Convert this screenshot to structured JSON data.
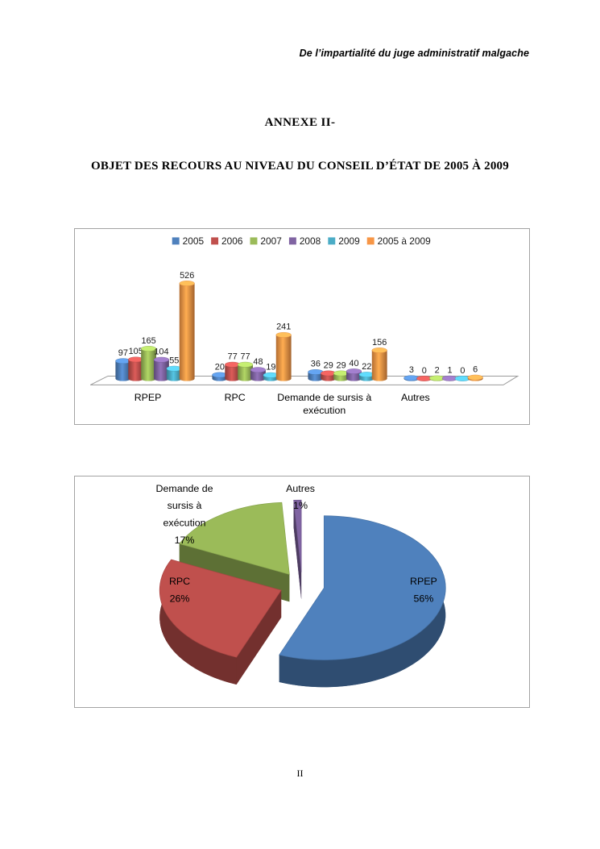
{
  "page": {
    "header": "De l’impartialité du juge administratif malgache",
    "title": "ANNEXE II-",
    "subtitle": "OBJET DES RECOURS AU NIVEAU DU CONSEIL D’ÉTAT DE 2005 À 2009",
    "footer": "II"
  },
  "chart_data": [
    {
      "type": "bar",
      "style": "3d-cylinder",
      "title": "",
      "categories": [
        "RPEP",
        "RPC",
        "Demande de sursis à exécution",
        "Autres"
      ],
      "categories_wrapped": [
        [
          "RPEP"
        ],
        [
          "RPC"
        ],
        [
          "Demande de sursis à",
          "exécution"
        ],
        [
          "Autres"
        ]
      ],
      "series": [
        {
          "name": "2005",
          "color": "#4F81BD",
          "values": [
            97,
            20,
            36,
            3
          ]
        },
        {
          "name": "2006",
          "color": "#C0504D",
          "values": [
            105,
            77,
            29,
            0
          ]
        },
        {
          "name": "2007",
          "color": "#9BBB59",
          "values": [
            165,
            77,
            29,
            2
          ]
        },
        {
          "name": "2008",
          "color": "#8064A2",
          "values": [
            104,
            48,
            40,
            1
          ]
        },
        {
          "name": "2009",
          "color": "#4BACC6",
          "values": [
            55,
            19,
            22,
            0
          ]
        },
        {
          "name": "2005 à 2009",
          "color": "#F79646",
          "values": [
            526,
            241,
            156,
            6
          ]
        }
      ],
      "legend_position": "top",
      "data_labels": true,
      "ylim": [
        0,
        526
      ],
      "grid": false
    },
    {
      "type": "pie",
      "style": "3d-exploded",
      "labels": [
        "RPEP",
        "RPC",
        "Demande de sursis à exécution",
        "Autres"
      ],
      "values": [
        56,
        26,
        17,
        1
      ],
      "unit": "%",
      "colors": [
        "#4F81BD",
        "#C0504D",
        "#9BBB59",
        "#8064A2"
      ],
      "label_texts": [
        [
          "RPEP",
          "56%"
        ],
        [
          "RPC",
          "26%"
        ],
        [
          "Demande de",
          "sursis à",
          "exécution",
          "17%"
        ],
        [
          "Autres",
          "1%"
        ]
      ],
      "legend_position": "none"
    }
  ]
}
